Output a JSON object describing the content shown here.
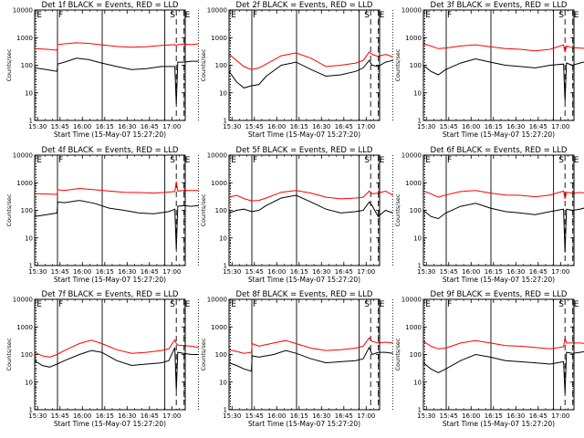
{
  "chart_data": {
    "type": "line",
    "layout": "3x3 grid of small multiples",
    "x_axis": {
      "label": "Start Time (15-May-07 15:27:20)",
      "range": [
        "15:28",
        "17:09"
      ],
      "ticks": [
        "15:30",
        "15:45",
        "16:00",
        "16:15",
        "16:30",
        "16:45",
        "17:00"
      ]
    },
    "y_axis": {
      "label": "Counts/sec",
      "scale": "log",
      "range": [
        1,
        10000
      ],
      "ticks": [
        "1",
        "10",
        "100",
        "1000",
        "10000"
      ]
    },
    "series_colors": {
      "events": "#000000",
      "lld": "#ff0000"
    },
    "time_markers": [
      "E",
      "F",
      "S",
      "E"
    ],
    "marker_minutes": {
      "E1": 0.8,
      "F": 15.3,
      "S": 95.0,
      "E2": 100.2
    },
    "solid_lines_minutes": [
      15.3,
      45.3,
      87.3
    ],
    "dashed_lines_minutes": [
      95.0,
      100.2
    ],
    "dotted_lines_minutes": [
      109.8
    ],
    "panels": [
      {
        "title": "Det 1f BLACK = Events, RED = LLD",
        "x_minutes": [
          0,
          8,
          15,
          15.5,
          20,
          28,
          36,
          45,
          55,
          65,
          75,
          85,
          94,
          95,
          96,
          100,
          105,
          110
        ],
        "events": [
          80,
          70,
          60,
          110,
          130,
          180,
          160,
          120,
          90,
          70,
          75,
          90,
          90,
          4,
          130,
          130,
          140,
          140
        ],
        "lld": [
          400,
          380,
          350,
          560,
          600,
          650,
          620,
          550,
          480,
          450,
          470,
          520,
          560,
          500,
          560,
          580,
          560,
          600
        ]
      },
      {
        "title": "Det 2f BLACK = Events, RED = LLD",
        "x_minutes": [
          0,
          5,
          10,
          15,
          20,
          25,
          35,
          45,
          55,
          65,
          75,
          85,
          90,
          94,
          96,
          100,
          105,
          110
        ],
        "events": [
          60,
          25,
          15,
          18,
          20,
          40,
          100,
          130,
          70,
          40,
          45,
          60,
          80,
          150,
          100,
          90,
          130,
          150
        ],
        "lld": [
          250,
          150,
          90,
          70,
          80,
          110,
          220,
          280,
          180,
          90,
          100,
          120,
          150,
          300,
          250,
          210,
          250,
          200
        ]
      },
      {
        "title": "Det 3f BLACK = Events, RED = LLD",
        "x_minutes": [
          0,
          5,
          10,
          15,
          25,
          35,
          45,
          55,
          65,
          75,
          85,
          94,
          95,
          96,
          100,
          105,
          110
        ],
        "events": [
          100,
          60,
          45,
          70,
          120,
          170,
          130,
          100,
          90,
          80,
          100,
          110,
          5,
          120,
          100,
          120,
          140
        ],
        "lld": [
          600,
          500,
          400,
          420,
          500,
          550,
          470,
          400,
          380,
          330,
          380,
          550,
          300,
          500,
          430,
          420,
          400
        ]
      },
      {
        "title": "Det 4f BLACK = Events, RED = LLD",
        "x_minutes": [
          0,
          8,
          15,
          15.5,
          20,
          30,
          40,
          50,
          60,
          70,
          80,
          90,
          94,
          95,
          96,
          100,
          105,
          110
        ],
        "events": [
          60,
          70,
          80,
          200,
          190,
          230,
          180,
          120,
          100,
          80,
          75,
          90,
          110,
          4,
          140,
          150,
          140,
          150
        ],
        "lld": [
          400,
          390,
          380,
          560,
          520,
          620,
          560,
          500,
          450,
          440,
          420,
          460,
          480,
          1100,
          500,
          530,
          520,
          520
        ]
      },
      {
        "title": "Det 5f BLACK = Events, RED = LLD",
        "x_minutes": [
          0,
          5,
          10,
          15,
          20,
          25,
          35,
          45,
          55,
          65,
          75,
          85,
          90,
          94,
          96,
          100,
          105,
          110
        ],
        "events": [
          80,
          100,
          110,
          90,
          100,
          150,
          280,
          350,
          200,
          110,
          80,
          90,
          100,
          200,
          150,
          60,
          100,
          80
        ],
        "lld": [
          300,
          350,
          270,
          220,
          230,
          280,
          450,
          520,
          420,
          300,
          260,
          280,
          300,
          500,
          400,
          420,
          500,
          350
        ]
      },
      {
        "title": "Det 6f BLACK = Events, RED = LLD",
        "x_minutes": [
          0,
          5,
          10,
          15,
          25,
          35,
          45,
          55,
          65,
          75,
          85,
          94,
          95,
          96,
          100,
          105,
          110
        ],
        "events": [
          100,
          60,
          50,
          80,
          140,
          180,
          120,
          90,
          80,
          70,
          90,
          110,
          3,
          110,
          100,
          110,
          130
        ],
        "lld": [
          500,
          400,
          300,
          360,
          480,
          520,
          420,
          360,
          350,
          310,
          360,
          500,
          260,
          450,
          420,
          440,
          420
        ]
      },
      {
        "title": "Det 7f BLACK = Events, RED = LLD",
        "x_minutes": [
          0,
          5,
          10,
          15,
          20,
          30,
          38,
          45,
          55,
          65,
          75,
          85,
          90,
          94,
          95,
          96,
          100,
          105,
          110
        ],
        "events": [
          60,
          40,
          35,
          45,
          60,
          100,
          140,
          120,
          60,
          40,
          45,
          50,
          60,
          180,
          5,
          120,
          110,
          100,
          100
        ],
        "lld": [
          120,
          90,
          80,
          100,
          140,
          250,
          330,
          250,
          150,
          110,
          120,
          140,
          160,
          340,
          250,
          220,
          210,
          200,
          180
        ]
      },
      {
        "title": "Det 8f BLACK = Events, RED = LLD",
        "x_minutes": [
          0,
          5,
          10,
          15,
          15.5,
          20,
          30,
          38,
          45,
          55,
          65,
          75,
          85,
          90,
          94,
          96,
          100,
          105,
          110
        ],
        "events": [
          50,
          40,
          30,
          25,
          90,
          80,
          100,
          140,
          110,
          70,
          50,
          55,
          60,
          70,
          180,
          100,
          120,
          120,
          110
        ],
        "lld": [
          150,
          130,
          110,
          120,
          250,
          200,
          260,
          320,
          250,
          170,
          140,
          150,
          170,
          200,
          400,
          300,
          260,
          280,
          260
        ]
      },
      {
        "title": "Det 9f BLACK = Events, RED = LLD",
        "x_minutes": [
          0,
          5,
          10,
          15,
          25,
          35,
          45,
          55,
          65,
          75,
          85,
          94,
          95,
          96,
          100,
          105,
          110
        ],
        "events": [
          50,
          30,
          22,
          30,
          60,
          100,
          80,
          60,
          55,
          50,
          45,
          55,
          4,
          120,
          110,
          120,
          130
        ],
        "lld": [
          300,
          200,
          160,
          170,
          260,
          320,
          260,
          210,
          200,
          180,
          160,
          190,
          400,
          260,
          260,
          260,
          250
        ]
      }
    ]
  }
}
